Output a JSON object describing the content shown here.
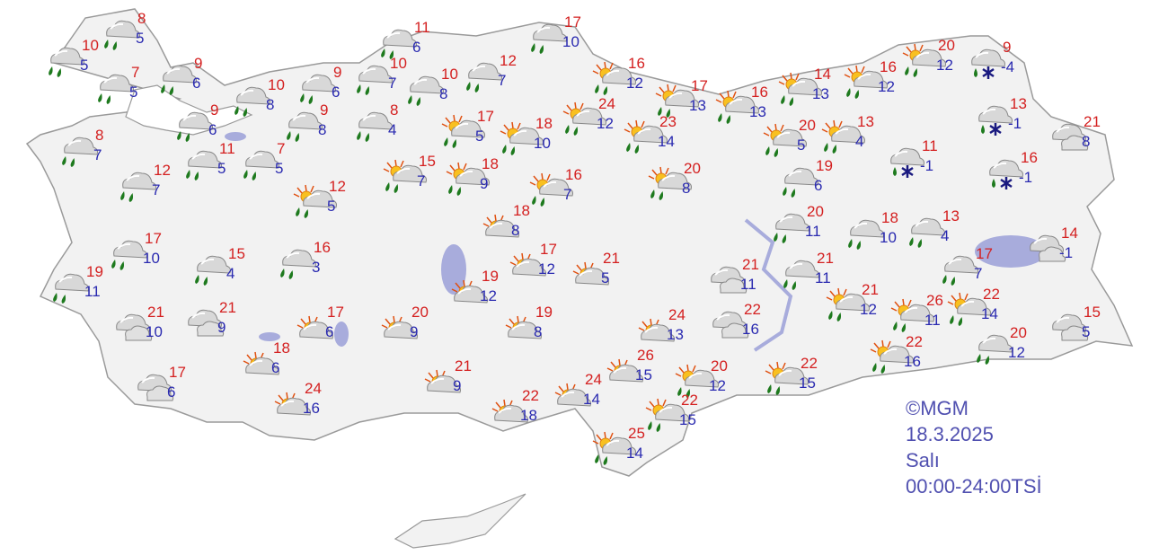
{
  "legend": {
    "copyright": "©MGM",
    "date": "18.3.2025",
    "day": "Salı",
    "period": "00:00-24:00TSİ"
  },
  "colors": {
    "max_temp": "#d42020",
    "min_temp": "#2a2ab0",
    "land": "#f2f2f2",
    "border": "#a0a0a0",
    "lake": "#a8acdc",
    "rain": "#1e7a1e"
  },
  "icon_types": [
    "rain",
    "sun-rain",
    "partly-cloudy",
    "cloudy",
    "rain-snow"
  ],
  "stations": [
    {
      "icon": "rain",
      "hi": "10",
      "lo": "5"
    },
    {
      "icon": "rain",
      "hi": "8",
      "lo": "5"
    },
    {
      "icon": "rain",
      "hi": "7",
      "lo": "5"
    },
    {
      "icon": "rain",
      "hi": "9",
      "lo": "6"
    },
    {
      "icon": "rain",
      "hi": "10",
      "lo": "8"
    },
    {
      "icon": "rain",
      "hi": "9",
      "lo": "6"
    },
    {
      "icon": "rain",
      "hi": "10",
      "lo": "7"
    },
    {
      "icon": "rain",
      "hi": "11",
      "lo": "6"
    },
    {
      "icon": "rain",
      "hi": "10",
      "lo": "8"
    },
    {
      "icon": "rain",
      "hi": "12",
      "lo": "7"
    },
    {
      "icon": "rain",
      "hi": "9",
      "lo": "6"
    },
    {
      "icon": "rain",
      "hi": "9",
      "lo": "8"
    },
    {
      "icon": "rain",
      "hi": "8",
      "lo": "4"
    },
    {
      "icon": "rain",
      "hi": "8",
      "lo": "7"
    },
    {
      "icon": "rain",
      "hi": "12",
      "lo": "7"
    },
    {
      "icon": "rain",
      "hi": "11",
      "lo": "5"
    },
    {
      "icon": "rain",
      "hi": "7",
      "lo": "5"
    },
    {
      "icon": "sun-rain",
      "hi": "12",
      "lo": "5"
    },
    {
      "icon": "sun-rain",
      "hi": "17",
      "lo": "5"
    },
    {
      "icon": "sun-rain",
      "hi": "18",
      "lo": "10"
    },
    {
      "icon": "sun-rain",
      "hi": "15",
      "lo": "7"
    },
    {
      "icon": "sun-rain",
      "hi": "18",
      "lo": "9"
    },
    {
      "icon": "sun-rain",
      "hi": "16",
      "lo": "7"
    },
    {
      "icon": "rain",
      "hi": "17",
      "lo": "10"
    },
    {
      "icon": "sun-rain",
      "hi": "16",
      "lo": "12"
    },
    {
      "icon": "sun-rain",
      "hi": "24",
      "lo": "12"
    },
    {
      "icon": "sun-rain",
      "hi": "17",
      "lo": "13"
    },
    {
      "icon": "sun-rain",
      "hi": "16",
      "lo": "13"
    },
    {
      "icon": "sun-rain",
      "hi": "23",
      "lo": "14"
    },
    {
      "icon": "sun-rain",
      "hi": "14",
      "lo": "13"
    },
    {
      "icon": "sun-rain",
      "hi": "16",
      "lo": "12"
    },
    {
      "icon": "sun-rain",
      "hi": "20",
      "lo": "12"
    },
    {
      "icon": "rain-snow",
      "hi": "9",
      "lo": "-4"
    },
    {
      "icon": "rain-snow",
      "hi": "13",
      "lo": "-1"
    },
    {
      "icon": "rain-snow",
      "hi": "11",
      "lo": "-1"
    },
    {
      "icon": "rain-snow",
      "hi": "16",
      "lo": "-1"
    },
    {
      "icon": "cloudy",
      "hi": "21",
      "lo": "8"
    },
    {
      "icon": "sun-rain",
      "hi": "20",
      "lo": "5"
    },
    {
      "icon": "sun-rain",
      "hi": "13",
      "lo": "4"
    },
    {
      "icon": "sun-rain",
      "hi": "20",
      "lo": "8"
    },
    {
      "icon": "rain",
      "hi": "19",
      "lo": "6"
    },
    {
      "icon": "rain",
      "hi": "20",
      "lo": "11"
    },
    {
      "icon": "rain",
      "hi": "18",
      "lo": "10"
    },
    {
      "icon": "rain",
      "hi": "13",
      "lo": "4"
    },
    {
      "icon": "cloudy",
      "hi": "14",
      "lo": "-1"
    },
    {
      "icon": "rain",
      "hi": "17",
      "lo": "7"
    },
    {
      "icon": "rain",
      "hi": "17",
      "lo": "10"
    },
    {
      "icon": "rain",
      "hi": "19",
      "lo": "11"
    },
    {
      "icon": "rain",
      "hi": "15",
      "lo": "4"
    },
    {
      "icon": "rain",
      "hi": "16",
      "lo": "3"
    },
    {
      "icon": "partly-cloudy",
      "hi": "18",
      "lo": "8"
    },
    {
      "icon": "partly-cloudy",
      "hi": "17",
      "lo": "12"
    },
    {
      "icon": "partly-cloudy",
      "hi": "21",
      "lo": "5"
    },
    {
      "icon": "partly-cloudy",
      "hi": "19",
      "lo": "12"
    },
    {
      "icon": "cloudy",
      "hi": "21",
      "lo": "11"
    },
    {
      "icon": "rain",
      "hi": "21",
      "lo": "11"
    },
    {
      "icon": "sun-rain",
      "hi": "21",
      "lo": "12"
    },
    {
      "icon": "sun-rain",
      "hi": "26",
      "lo": "11"
    },
    {
      "icon": "sun-rain",
      "hi": "22",
      "lo": "14"
    },
    {
      "icon": "cloudy",
      "hi": "15",
      "lo": "5"
    },
    {
      "icon": "cloudy",
      "hi": "21",
      "lo": "10"
    },
    {
      "icon": "cloudy",
      "hi": "21",
      "lo": "9"
    },
    {
      "icon": "partly-cloudy",
      "hi": "17",
      "lo": "6"
    },
    {
      "icon": "partly-cloudy",
      "hi": "20",
      "lo": "9"
    },
    {
      "icon": "partly-cloudy",
      "hi": "19",
      "lo": "8"
    },
    {
      "icon": "partly-cloudy",
      "hi": "24",
      "lo": "13"
    },
    {
      "icon": "cloudy",
      "hi": "22",
      "lo": "16"
    },
    {
      "icon": "partly-cloudy",
      "hi": "18",
      "lo": "6"
    },
    {
      "icon": "cloudy",
      "hi": "17",
      "lo": "6"
    },
    {
      "icon": "partly-cloudy",
      "hi": "24",
      "lo": "16"
    },
    {
      "icon": "partly-cloudy",
      "hi": "21",
      "lo": "9"
    },
    {
      "icon": "partly-cloudy",
      "hi": "22",
      "lo": "18"
    },
    {
      "icon": "partly-cloudy",
      "hi": "24",
      "lo": "14"
    },
    {
      "icon": "partly-cloudy",
      "hi": "26",
      "lo": "15"
    },
    {
      "icon": "sun-rain",
      "hi": "20",
      "lo": "12"
    },
    {
      "icon": "sun-rain",
      "hi": "22",
      "lo": "15"
    },
    {
      "icon": "sun-rain",
      "hi": "22",
      "lo": "15"
    },
    {
      "icon": "sun-rain",
      "hi": "22",
      "lo": "16"
    },
    {
      "icon": "rain",
      "hi": "20",
      "lo": "12"
    },
    {
      "icon": "sun-rain",
      "hi": "25",
      "lo": "14"
    }
  ]
}
